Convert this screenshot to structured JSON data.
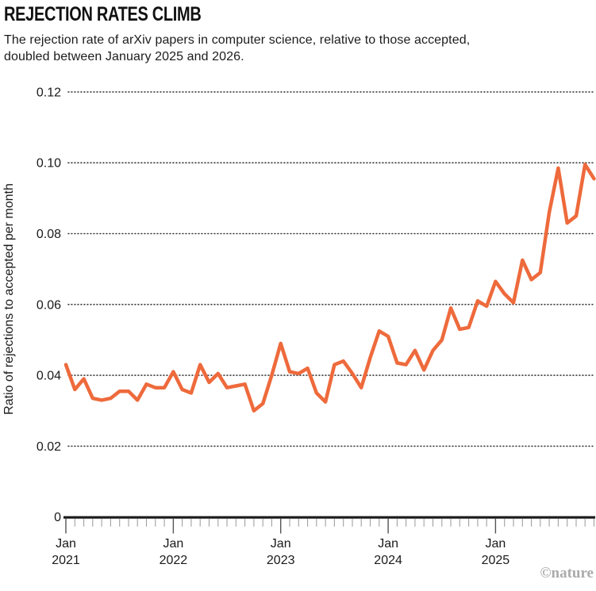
{
  "header": {
    "title": "REJECTION RATES CLIMB",
    "subtitle_line1": "The rejection rate of arXiv papers in computer science, relative to those accepted,",
    "subtitle_line2": "doubled between January 2025 and 2026."
  },
  "footer": {
    "credit": "©nature"
  },
  "chart_data": {
    "type": "line",
    "title": "REJECTION RATES CLIMB",
    "xlabel": "",
    "ylabel": "Ratio of rejections to accepted per month",
    "ylim": [
      0,
      0.12
    ],
    "grid": "horizontal dotted",
    "legend": "none",
    "line_color": "#ee6a3c",
    "axis_color": "#1a1a1a",
    "grid_color": "#3c3c3c",
    "minor_tick_color": "#a0a0a0",
    "major_tick_color": "#555555",
    "y_ticks": [
      {
        "value": 0,
        "label": "0"
      },
      {
        "value": 0.02,
        "label": "0.02"
      },
      {
        "value": 0.04,
        "label": "0.04"
      },
      {
        "value": 0.06,
        "label": "0.06"
      },
      {
        "value": 0.08,
        "label": "0.08"
      },
      {
        "value": 0.1,
        "label": "0.10"
      },
      {
        "value": 0.12,
        "label": "0.12"
      }
    ],
    "x_major_tick_labels": [
      {
        "month": "Jan",
        "year": "2021"
      },
      {
        "month": "Jan",
        "year": "2022"
      },
      {
        "month": "Jan",
        "year": "2023"
      },
      {
        "month": "Jan",
        "year": "2024"
      },
      {
        "month": "Jan",
        "year": "2025"
      }
    ],
    "x": [
      "Jan 2021",
      "Feb 2021",
      "Mar 2021",
      "Apr 2021",
      "May 2021",
      "Jun 2021",
      "Jul 2021",
      "Aug 2021",
      "Sep 2021",
      "Oct 2021",
      "Nov 2021",
      "Dec 2021",
      "Jan 2022",
      "Feb 2022",
      "Mar 2022",
      "Apr 2022",
      "May 2022",
      "Jun 2022",
      "Jul 2022",
      "Aug 2022",
      "Sep 2022",
      "Oct 2022",
      "Nov 2022",
      "Dec 2022",
      "Jan 2023",
      "Feb 2023",
      "Mar 2023",
      "Apr 2023",
      "May 2023",
      "Jun 2023",
      "Jul 2023",
      "Aug 2023",
      "Sep 2023",
      "Oct 2023",
      "Nov 2023",
      "Dec 2023",
      "Jan 2024",
      "Feb 2024",
      "Mar 2024",
      "Apr 2024",
      "May 2024",
      "Jun 2024",
      "Jul 2024",
      "Aug 2024",
      "Sep 2024",
      "Oct 2024",
      "Nov 2024",
      "Dec 2024",
      "Jan 2025",
      "Feb 2025",
      "Mar 2025",
      "Apr 2025",
      "May 2025",
      "Jun 2025",
      "Jul 2025",
      "Aug 2025",
      "Sep 2025",
      "Oct 2025",
      "Nov 2025",
      "Dec 2025"
    ],
    "series": [
      {
        "name": "Ratio of rejections to accepted",
        "values": [
          0.043,
          0.036,
          0.039,
          0.0335,
          0.033,
          0.0335,
          0.0355,
          0.0355,
          0.033,
          0.0375,
          0.0365,
          0.0365,
          0.041,
          0.036,
          0.035,
          0.043,
          0.038,
          0.0405,
          0.0365,
          0.037,
          0.0375,
          0.03,
          0.032,
          0.04,
          0.049,
          0.041,
          0.0405,
          0.042,
          0.035,
          0.0325,
          0.043,
          0.044,
          0.0405,
          0.0365,
          0.045,
          0.0525,
          0.051,
          0.0435,
          0.043,
          0.047,
          0.0415,
          0.047,
          0.05,
          0.059,
          0.053,
          0.0535,
          0.061,
          0.0595,
          0.0665,
          0.063,
          0.0605,
          0.0725,
          0.067,
          0.069,
          0.086,
          0.0985,
          0.083,
          0.085,
          0.0995,
          0.0955
        ]
      }
    ]
  }
}
